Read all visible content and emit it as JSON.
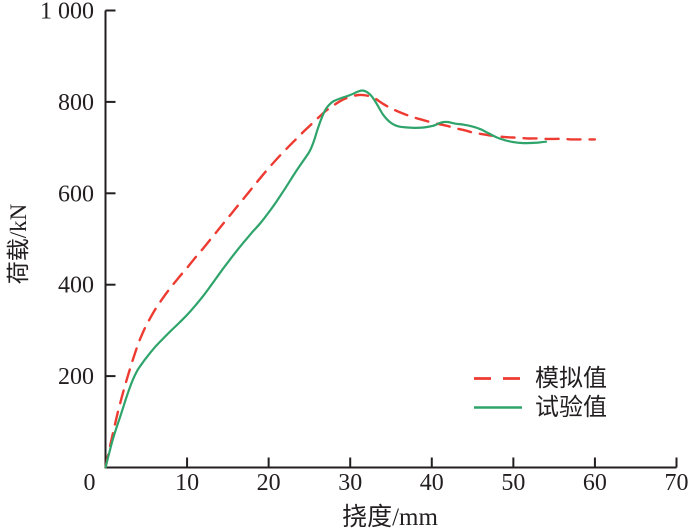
{
  "figure": {
    "background": "#ffffff",
    "axis_color": "#231f20",
    "text_color": "#231f20"
  },
  "chart_data": {
    "type": "line",
    "title": "",
    "xlabel": "挠度/mm",
    "ylabel": "荷载/kN",
    "xlim": [
      0,
      70
    ],
    "ylim": [
      0,
      1000
    ],
    "grid": false,
    "legend_position": "inside-lower-right",
    "x_ticks": [
      {
        "value": 0,
        "label": "0"
      },
      {
        "value": 10,
        "label": "10"
      },
      {
        "value": 20,
        "label": "20"
      },
      {
        "value": 30,
        "label": "30"
      },
      {
        "value": 40,
        "label": "40"
      },
      {
        "value": 50,
        "label": "50"
      },
      {
        "value": 60,
        "label": "60"
      },
      {
        "value": 70,
        "label": "70"
      }
    ],
    "y_ticks": [
      {
        "value": 200,
        "label": "200"
      },
      {
        "value": 400,
        "label": "400"
      },
      {
        "value": 600,
        "label": "600"
      },
      {
        "value": 800,
        "label": "800"
      },
      {
        "value": 1000,
        "label": "1 000"
      }
    ],
    "series": [
      {
        "key": "simulated",
        "name": "模拟值",
        "style": "dashed",
        "color": "#ee3b31",
        "width": 2.4,
        "dash": [
          13,
          9
        ],
        "points": [
          [
            0,
            0
          ],
          [
            0.5,
            42
          ],
          [
            1,
            82
          ],
          [
            1.5,
            120
          ],
          [
            2,
            154
          ],
          [
            2.5,
            186
          ],
          [
            3,
            216
          ],
          [
            3.5,
            244
          ],
          [
            4,
            270
          ],
          [
            4.5,
            292
          ],
          [
            5,
            311
          ],
          [
            6,
            343
          ],
          [
            7,
            370
          ],
          [
            8,
            394
          ],
          [
            9,
            416
          ],
          [
            10,
            437
          ],
          [
            11,
            459
          ],
          [
            12,
            480
          ],
          [
            13,
            502
          ],
          [
            14,
            524
          ],
          [
            15,
            546
          ],
          [
            16,
            568
          ],
          [
            17,
            590
          ],
          [
            18,
            612
          ],
          [
            19,
            634
          ],
          [
            20,
            655
          ],
          [
            21,
            675
          ],
          [
            22,
            694
          ],
          [
            23,
            712
          ],
          [
            24,
            730
          ],
          [
            25,
            747
          ],
          [
            26,
            764
          ],
          [
            27,
            780
          ],
          [
            28,
            793
          ],
          [
            29,
            804
          ],
          [
            30,
            811
          ],
          [
            31,
            815
          ],
          [
            32,
            814
          ],
          [
            33,
            808
          ],
          [
            34,
            796
          ],
          [
            35,
            786
          ],
          [
            36,
            778
          ],
          [
            37,
            771
          ],
          [
            38,
            765
          ],
          [
            39,
            760
          ],
          [
            40,
            755
          ],
          [
            41,
            751
          ],
          [
            42,
            747
          ],
          [
            43,
            742
          ],
          [
            44,
            738
          ],
          [
            45,
            733
          ],
          [
            46,
            730
          ],
          [
            47,
            727
          ],
          [
            48,
            725
          ],
          [
            49,
            723
          ],
          [
            50,
            722
          ],
          [
            51,
            721
          ],
          [
            52,
            720
          ],
          [
            53,
            720
          ],
          [
            54,
            719
          ],
          [
            55,
            719
          ],
          [
            56,
            719
          ],
          [
            57,
            718
          ],
          [
            58,
            718
          ],
          [
            59,
            718
          ],
          [
            60,
            718
          ]
        ]
      },
      {
        "key": "experimental",
        "name": "试验值",
        "style": "solid",
        "color": "#2ea46b",
        "width": 2.2,
        "dash": null,
        "points": [
          [
            0,
            0
          ],
          [
            0.5,
            35
          ],
          [
            1,
            68
          ],
          [
            1.5,
            95
          ],
          [
            2,
            122
          ],
          [
            2.5,
            150
          ],
          [
            3,
            176
          ],
          [
            3.5,
            198
          ],
          [
            4,
            215
          ],
          [
            4.5,
            228
          ],
          [
            5,
            240
          ],
          [
            6,
            262
          ],
          [
            7,
            281
          ],
          [
            8,
            299
          ],
          [
            9,
            316
          ],
          [
            10,
            334
          ],
          [
            11,
            354
          ],
          [
            12,
            376
          ],
          [
            13,
            400
          ],
          [
            14,
            425
          ],
          [
            15,
            449
          ],
          [
            16,
            472
          ],
          [
            17,
            494
          ],
          [
            18,
            515
          ],
          [
            19,
            535
          ],
          [
            20,
            558
          ],
          [
            21,
            583
          ],
          [
            22,
            610
          ],
          [
            23,
            638
          ],
          [
            24,
            665
          ],
          [
            25,
            691
          ],
          [
            25.5,
            712
          ],
          [
            26,
            740
          ],
          [
            26.5,
            765
          ],
          [
            27,
            784
          ],
          [
            27.5,
            795
          ],
          [
            28,
            802
          ],
          [
            29,
            809
          ],
          [
            30,
            815
          ],
          [
            31,
            823
          ],
          [
            31.5,
            825
          ],
          [
            32,
            822
          ],
          [
            32.5,
            815
          ],
          [
            33,
            803
          ],
          [
            33.5,
            788
          ],
          [
            34,
            773
          ],
          [
            34.5,
            762
          ],
          [
            35,
            754
          ],
          [
            35.5,
            749
          ],
          [
            36,
            746
          ],
          [
            37,
            744
          ],
          [
            38,
            743
          ],
          [
            39,
            744
          ],
          [
            40,
            747
          ],
          [
            40.5,
            750
          ],
          [
            41,
            754
          ],
          [
            41.5,
            756
          ],
          [
            42,
            756
          ],
          [
            42.5,
            754
          ],
          [
            43,
            752
          ],
          [
            44,
            750
          ],
          [
            45,
            746
          ],
          [
            46,
            740
          ],
          [
            47,
            731
          ],
          [
            48,
            722
          ],
          [
            49,
            716
          ],
          [
            50,
            712
          ],
          [
            51,
            710
          ],
          [
            52,
            710
          ],
          [
            53,
            711
          ],
          [
            54,
            713
          ]
        ]
      }
    ]
  }
}
